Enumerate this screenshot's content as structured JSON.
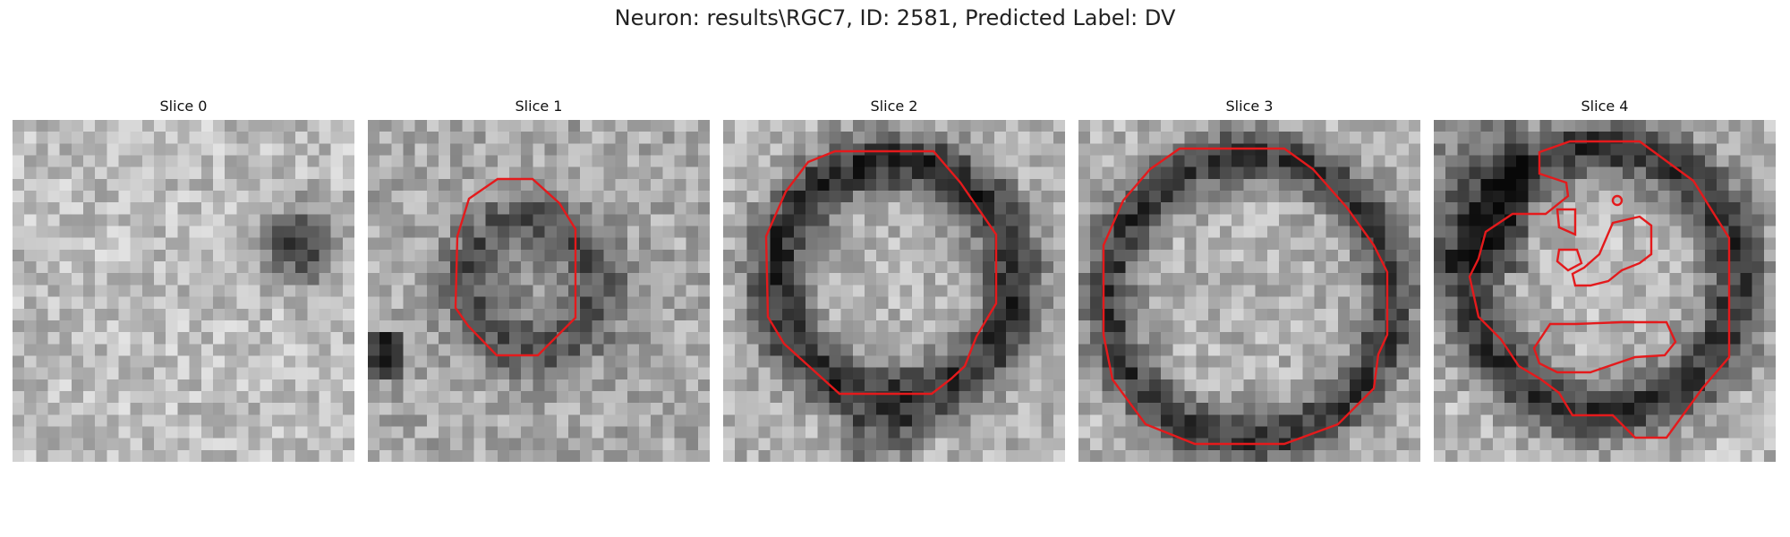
{
  "figure": {
    "title": "Neuron: results\\RGC7, ID: 2581, Predicted Label: DV",
    "contour_color": "#e41a1c",
    "colormap": "gray"
  },
  "panels": [
    {
      "title": "Slice 0",
      "has_contour": false,
      "pattern": "texture-with-dark-blob-right"
    },
    {
      "title": "Slice 1",
      "has_contour": true,
      "pattern": "medium-dark-ring-center"
    },
    {
      "title": "Slice 2",
      "has_contour": true,
      "pattern": "dark-ring-large"
    },
    {
      "title": "Slice 3",
      "has_contour": true,
      "pattern": "dark-ring-larger"
    },
    {
      "title": "Slice 4",
      "has_contour": true,
      "pattern": "dark-ring-with-internal-contours"
    }
  ]
}
